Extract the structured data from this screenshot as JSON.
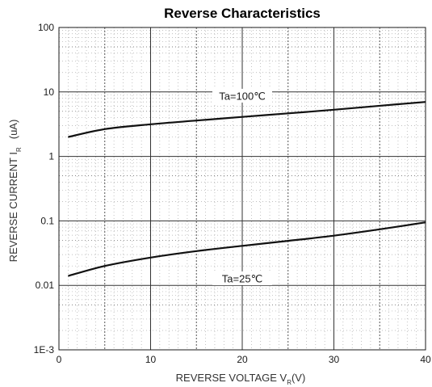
{
  "chart_data": {
    "type": "line",
    "title": "Reverse Characteristics",
    "xlabel": {
      "main": "REVERSE VOLTAGE V",
      "sub": "R",
      "suffix": "(V)"
    },
    "ylabel": {
      "main": "REVERSE CURRENT I",
      "sub": "R",
      "unit": "(uA)"
    },
    "xlim": [
      0,
      40
    ],
    "ylim": [
      0.001,
      100
    ],
    "yscale": "log",
    "grid": true,
    "x_ticks": [
      {
        "value": 0,
        "label": "0"
      },
      {
        "value": 10,
        "label": "10"
      },
      {
        "value": 20,
        "label": "20"
      },
      {
        "value": 30,
        "label": "30"
      },
      {
        "value": 40,
        "label": "40"
      }
    ],
    "y_ticks": [
      {
        "value": 100,
        "label": "100"
      },
      {
        "value": 10,
        "label": "10"
      },
      {
        "value": 1,
        "label": "1"
      },
      {
        "value": 0.1,
        "label": "0.1"
      },
      {
        "value": 0.01,
        "label": "0.01"
      },
      {
        "value": 0.001,
        "label": "1E-3"
      }
    ],
    "series": [
      {
        "label": "Ta=100℃",
        "x": [
          1,
          5,
          10,
          15,
          20,
          25,
          30,
          35,
          40
        ],
        "y": [
          2.0,
          2.65,
          3.15,
          3.6,
          4.1,
          4.65,
          5.3,
          6.1,
          7.0
        ],
        "label_at": {
          "x": 20,
          "y": 8.5
        }
      },
      {
        "label": "Ta=25℃",
        "x": [
          1,
          5,
          10,
          15,
          20,
          25,
          30,
          35,
          40
        ],
        "y": [
          0.014,
          0.02,
          0.027,
          0.034,
          0.041,
          0.049,
          0.059,
          0.074,
          0.095
        ],
        "label_at": {
          "x": 20,
          "y": 0.0125
        }
      }
    ]
  }
}
